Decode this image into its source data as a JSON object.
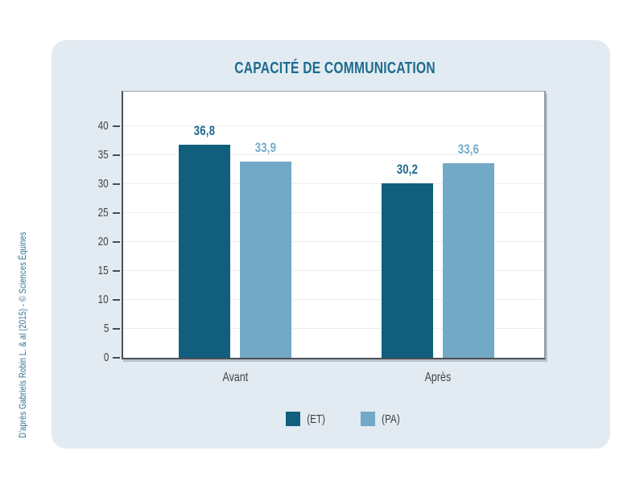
{
  "attribution": "D'après Gabriels Robin L. & al (2015) - © Sciences Équines",
  "chart_data": {
    "type": "bar",
    "title": "CAPACITÉ DE COMMUNICATION",
    "categories": [
      "Avant",
      "Après"
    ],
    "series": [
      {
        "name": "(ET)",
        "color": "#115e7d",
        "label_color": "#1d6b8d",
        "values": [
          36.8,
          30.2
        ],
        "display": [
          "36,8",
          "30,2"
        ]
      },
      {
        "name": "(PA)",
        "color": "#72a9c6",
        "label_color": "#74abc9",
        "values": [
          33.9,
          33.6
        ],
        "display": [
          "33,9",
          "33,6"
        ]
      }
    ],
    "ylim": [
      0,
      46
    ],
    "yticks": [
      0,
      5,
      10,
      15,
      20,
      25,
      30,
      35,
      40
    ],
    "grid": true,
    "legend_position": "bottom",
    "decimal_separator": ",",
    "colors": {
      "panel_background": "#e2ebf2",
      "plot_background": "#ffffff",
      "axis": "#4a5056",
      "gridline": "#ececec",
      "tick_text": "#3f4449",
      "title_text": "#1d6b8d",
      "attribution_text": "#2e7191"
    }
  }
}
